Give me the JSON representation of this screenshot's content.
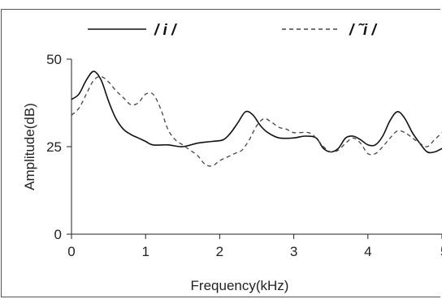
{
  "chart_data": {
    "type": "line",
    "title": "",
    "xlabel": "Frequency(kHz)",
    "ylabel": "Amplitude(dB)",
    "xlim": [
      0,
      5
    ],
    "ylim": [
      0,
      50
    ],
    "x_ticks": [
      "0",
      "1",
      "2",
      "3",
      "4",
      "5"
    ],
    "y_ticks": [
      "0",
      "25",
      "50"
    ],
    "grid": false,
    "legend_position": "top",
    "series": [
      {
        "name": "/ i /",
        "style": "solid",
        "color": "#111111",
        "points": [
          [
            0,
            38.5
          ],
          [
            0.1,
            40
          ],
          [
            0.2,
            44
          ],
          [
            0.3,
            46.5
          ],
          [
            0.4,
            44
          ],
          [
            0.5,
            38
          ],
          [
            0.6,
            33
          ],
          [
            0.7,
            30
          ],
          [
            0.8,
            28.5
          ],
          [
            0.9,
            27.5
          ],
          [
            1.0,
            26.5
          ],
          [
            1.1,
            25.5
          ],
          [
            1.3,
            25.5
          ],
          [
            1.5,
            25
          ],
          [
            1.7,
            26
          ],
          [
            1.9,
            26.5
          ],
          [
            2.05,
            27
          ],
          [
            2.15,
            29
          ],
          [
            2.25,
            32
          ],
          [
            2.35,
            35
          ],
          [
            2.45,
            34
          ],
          [
            2.55,
            31
          ],
          [
            2.65,
            29
          ],
          [
            2.8,
            27.5
          ],
          [
            3.0,
            27.5
          ],
          [
            3.15,
            28
          ],
          [
            3.3,
            27.5
          ],
          [
            3.4,
            24.5
          ],
          [
            3.5,
            23.5
          ],
          [
            3.6,
            24.5
          ],
          [
            3.7,
            27.5
          ],
          [
            3.8,
            28
          ],
          [
            3.9,
            27
          ],
          [
            4.0,
            25.5
          ],
          [
            4.1,
            25.5
          ],
          [
            4.2,
            28
          ],
          [
            4.3,
            32.5
          ],
          [
            4.4,
            35
          ],
          [
            4.5,
            33
          ],
          [
            4.6,
            29
          ],
          [
            4.7,
            26
          ],
          [
            4.8,
            23.5
          ],
          [
            4.9,
            23.5
          ],
          [
            5.0,
            24.5
          ]
        ]
      },
      {
        "name": "/ ˜i /",
        "style": "dashed",
        "color": "#444444",
        "points": [
          [
            0,
            34
          ],
          [
            0.1,
            36
          ],
          [
            0.2,
            40
          ],
          [
            0.3,
            44
          ],
          [
            0.4,
            45
          ],
          [
            0.5,
            43.5
          ],
          [
            0.6,
            41
          ],
          [
            0.7,
            39
          ],
          [
            0.8,
            37
          ],
          [
            0.9,
            37.5
          ],
          [
            1.0,
            40
          ],
          [
            1.1,
            40
          ],
          [
            1.2,
            36
          ],
          [
            1.3,
            30
          ],
          [
            1.4,
            27
          ],
          [
            1.5,
            25.5
          ],
          [
            1.6,
            24
          ],
          [
            1.7,
            22.5
          ],
          [
            1.8,
            20
          ],
          [
            1.9,
            19.5
          ],
          [
            2.0,
            21
          ],
          [
            2.1,
            22
          ],
          [
            2.2,
            23
          ],
          [
            2.3,
            24
          ],
          [
            2.4,
            27
          ],
          [
            2.5,
            31
          ],
          [
            2.6,
            33
          ],
          [
            2.7,
            32
          ],
          [
            2.8,
            30.5
          ],
          [
            2.9,
            30
          ],
          [
            3.0,
            29
          ],
          [
            3.2,
            29
          ],
          [
            3.3,
            27.5
          ],
          [
            3.4,
            25
          ],
          [
            3.5,
            23.5
          ],
          [
            3.6,
            24
          ],
          [
            3.7,
            26
          ],
          [
            3.8,
            27.5
          ],
          [
            3.9,
            26
          ],
          [
            4.0,
            23
          ],
          [
            4.1,
            23
          ],
          [
            4.2,
            25
          ],
          [
            4.3,
            27.5
          ],
          [
            4.4,
            29.5
          ],
          [
            4.5,
            29
          ],
          [
            4.6,
            27.5
          ],
          [
            4.7,
            26
          ],
          [
            4.8,
            25
          ],
          [
            4.9,
            27
          ],
          [
            5.0,
            29
          ]
        ]
      }
    ]
  }
}
